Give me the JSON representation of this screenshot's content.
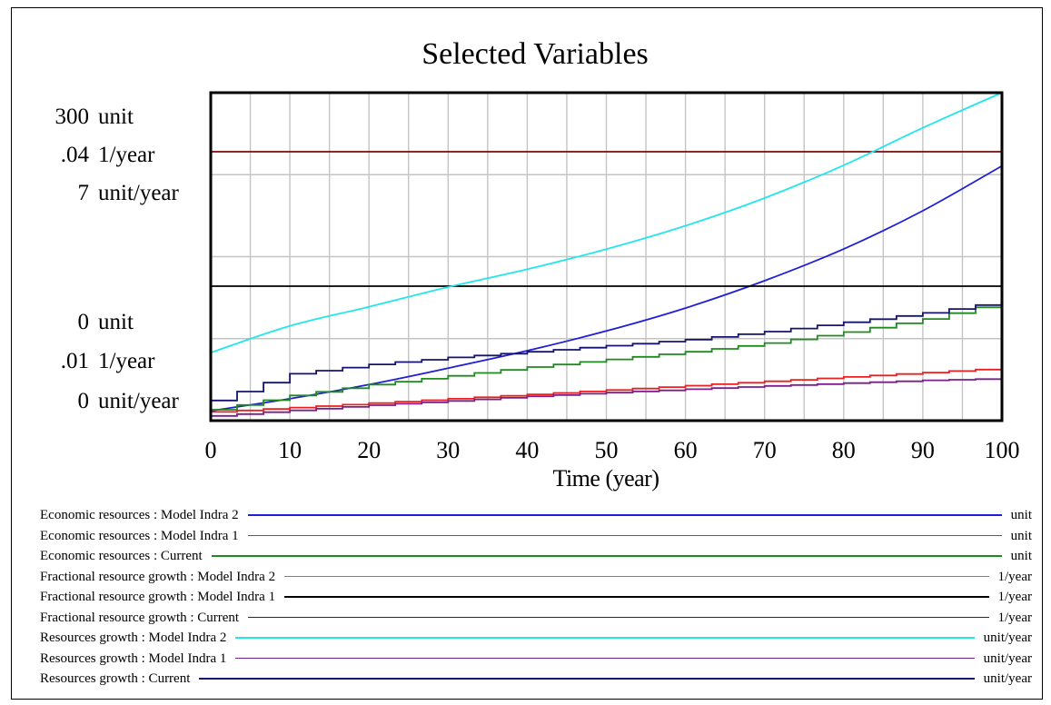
{
  "chart_data": {
    "type": "line",
    "title": "Selected Variables",
    "xlabel": "Time (year)",
    "xlim": [
      0,
      100
    ],
    "x_ticks": [
      "0",
      "10",
      "20",
      "30",
      "40",
      "50",
      "60",
      "70",
      "80",
      "90",
      "100"
    ],
    "axes": [
      {
        "unit": "unit",
        "top_label": "300",
        "bottom_label": "0",
        "ylim": [
          0,
          300
        ]
      },
      {
        "unit": "1/year",
        "top_label": ".04",
        "bottom_label": ".01",
        "ylim": [
          0.01,
          0.04
        ]
      },
      {
        "unit": "unit/year",
        "top_label": "7",
        "bottom_label": "0",
        "ylim": [
          0,
          7
        ]
      }
    ],
    "grid": true,
    "legend_position": "bottom",
    "series": [
      {
        "name": "Economic resources : Model Indra 2",
        "unit": "unit",
        "color": "#1f1fd6",
        "points": [
          [
            0,
            9
          ],
          [
            10,
            20
          ],
          [
            20,
            33
          ],
          [
            30,
            48
          ],
          [
            40,
            64
          ],
          [
            50,
            82
          ],
          [
            60,
            103
          ],
          [
            70,
            128
          ],
          [
            80,
            157
          ],
          [
            90,
            192
          ],
          [
            100,
            233
          ]
        ]
      },
      {
        "name": "Economic resources : Model Indra 1",
        "unit": "unit",
        "color": "#e82020",
        "step": true,
        "points": [
          [
            0,
            8
          ],
          [
            10,
            12
          ],
          [
            20,
            16
          ],
          [
            30,
            20
          ],
          [
            40,
            24
          ],
          [
            50,
            28
          ],
          [
            60,
            32
          ],
          [
            70,
            36
          ],
          [
            80,
            40
          ],
          [
            90,
            44
          ],
          [
            100,
            48
          ]
        ]
      },
      {
        "name": "Economic resources : Current",
        "unit": "unit",
        "color": "#1f8a1f",
        "step": true,
        "points": [
          [
            0,
            10
          ],
          [
            10,
            23
          ],
          [
            20,
            33
          ],
          [
            30,
            41
          ],
          [
            40,
            49
          ],
          [
            50,
            56
          ],
          [
            60,
            63
          ],
          [
            70,
            71
          ],
          [
            80,
            81
          ],
          [
            90,
            93
          ],
          [
            100,
            109
          ]
        ]
      },
      {
        "name": "Fractional resource growth : Model Indra 2",
        "unit": "1/year",
        "color": "#808080",
        "points": [
          [
            0,
            0.01
          ],
          [
            100,
            0.01
          ]
        ]
      },
      {
        "name": "Fractional resource growth : Model Indra 1",
        "unit": "1/year",
        "color": "#000000",
        "points": [
          [
            0,
            0.0223
          ],
          [
            100,
            0.0223
          ]
        ]
      },
      {
        "name": "Fractional resource growth : Current",
        "unit": "1/year",
        "color": "#7a0a0a",
        "points": [
          [
            0,
            0.0346
          ],
          [
            100,
            0.0346
          ]
        ]
      },
      {
        "name": "Resources growth : Model Indra 2",
        "unit": "unit/year",
        "color": "#22e6ea",
        "points": [
          [
            0,
            1.45
          ],
          [
            10,
            2.02
          ],
          [
            20,
            2.43
          ],
          [
            30,
            2.85
          ],
          [
            40,
            3.23
          ],
          [
            50,
            3.66
          ],
          [
            60,
            4.16
          ],
          [
            70,
            4.75
          ],
          [
            80,
            5.45
          ],
          [
            90,
            6.25
          ],
          [
            100,
            7.0
          ]
        ]
      },
      {
        "name": "Resources growth : Model Indra 1",
        "unit": "unit/year",
        "color": "#7a1f8a",
        "step": true,
        "points": [
          [
            0,
            0.1
          ],
          [
            10,
            0.22
          ],
          [
            20,
            0.33
          ],
          [
            30,
            0.42
          ],
          [
            40,
            0.52
          ],
          [
            50,
            0.6
          ],
          [
            60,
            0.67
          ],
          [
            70,
            0.74
          ],
          [
            80,
            0.8
          ],
          [
            90,
            0.86
          ],
          [
            100,
            0.9
          ]
        ]
      },
      {
        "name": "Resources growth : Current",
        "unit": "unit/year",
        "color": "#141470",
        "step": true,
        "points": [
          [
            0,
            0.43
          ],
          [
            10,
            1.0
          ],
          [
            20,
            1.2
          ],
          [
            30,
            1.35
          ],
          [
            40,
            1.47
          ],
          [
            50,
            1.6
          ],
          [
            60,
            1.73
          ],
          [
            70,
            1.9
          ],
          [
            80,
            2.1
          ],
          [
            90,
            2.3
          ],
          [
            100,
            2.55
          ]
        ]
      }
    ]
  }
}
